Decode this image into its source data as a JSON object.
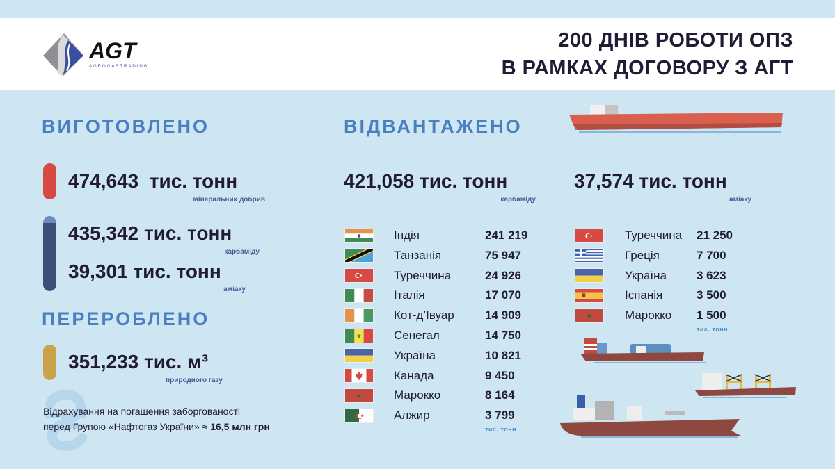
{
  "header": {
    "logo_text": "AGT",
    "logo_subtext": "AGROGASTRADING",
    "title_line1": "200 ДНІВ РОБОТИ ОПЗ",
    "title_line2": "В РАМКАХ ДОГОВОРУ З АГТ"
  },
  "produced": {
    "heading": "ВИГОТОВЛЕНО",
    "items": [
      {
        "value": "474,643",
        "unit": "тис. тонн",
        "label": "мінеральних добрив",
        "color": "#d64a43"
      },
      {
        "value": "435,342",
        "unit": "тис. тонн",
        "label": "карбаміду",
        "color": "#3f4d7a"
      },
      {
        "value": "39,301",
        "unit": "тис. тонн",
        "label": "аміаку",
        "color": "#3f4d7a"
      }
    ]
  },
  "processed": {
    "heading": "ПЕРЕРОБЛЕНО",
    "value": "351,233",
    "unit": "тис. м³",
    "label": "природного газу",
    "color": "#c9a24a"
  },
  "note": {
    "line1": "Відрахування на погашення заборгованості",
    "line2": "перед Групою «Нафтогаз України» ≈ ",
    "amount": "16,5 млн грн",
    "icon": "hryvnia-icon"
  },
  "shipped": {
    "heading": "ВІДВАНТАЖЕНО",
    "urea": {
      "value": "421,058",
      "unit": "тис. тонн",
      "label": "карбаміду",
      "unit_note": "тис. тонн",
      "rows": [
        {
          "country": "Індія",
          "value": "241 219",
          "flag": "india"
        },
        {
          "country": "Танзанія",
          "value": "75 947",
          "flag": "tanzania"
        },
        {
          "country": "Туреччина",
          "value": "24 926",
          "flag": "turkey"
        },
        {
          "country": "Італія",
          "value": "17 070",
          "flag": "italy"
        },
        {
          "country": "Кот-д’Івуар",
          "value": "14 909",
          "flag": "ivory-coast"
        },
        {
          "country": "Сенегал",
          "value": "14 750",
          "flag": "senegal"
        },
        {
          "country": "Україна",
          "value": "10 821",
          "flag": "ukraine"
        },
        {
          "country": "Канада",
          "value": "9 450",
          "flag": "canada"
        },
        {
          "country": "Марокко",
          "value": "8 164",
          "flag": "morocco"
        },
        {
          "country": "Алжир",
          "value": "3 799",
          "flag": "algeria"
        }
      ]
    },
    "ammonia": {
      "value": "37,574",
      "unit": "тис. тонн",
      "label": "аміаку",
      "unit_note": "тис. тонн",
      "rows": [
        {
          "country": "Туреччина",
          "value": "21 250",
          "flag": "turkey"
        },
        {
          "country": "Греція",
          "value": "7 700",
          "flag": "greece"
        },
        {
          "country": "Україна",
          "value": "3 623",
          "flag": "ukraine"
        },
        {
          "country": "Іспанія",
          "value": "3 500",
          "flag": "spain"
        },
        {
          "country": "Марокко",
          "value": "1 500",
          "flag": "morocco"
        }
      ]
    }
  },
  "colors": {
    "background": "#cde6f2",
    "heading": "#4a7fc1",
    "text": "#221b36",
    "ship_red": "#d9604e",
    "ship_brown": "#8e4840"
  }
}
